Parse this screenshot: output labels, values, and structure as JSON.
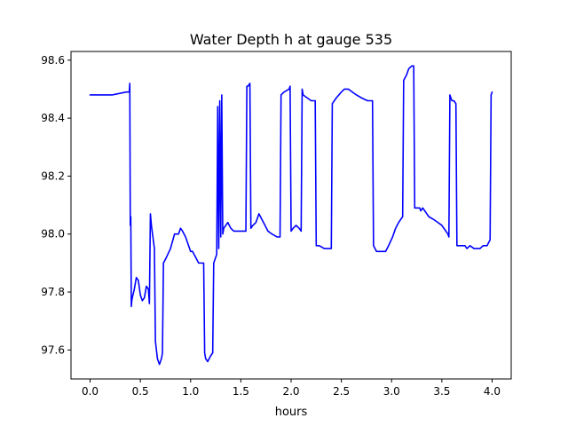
{
  "chart_data": {
    "type": "line",
    "title": "Water Depth h at gauge 535",
    "xlabel": "hours",
    "ylabel": "",
    "xlim": [
      -0.19,
      4.19
    ],
    "ylim": [
      97.5,
      98.63
    ],
    "xticks": [
      0.0,
      0.5,
      1.0,
      1.5,
      2.0,
      2.5,
      3.0,
      3.5,
      4.0
    ],
    "xtick_labels": [
      "0.0",
      "0.5",
      "1.0",
      "1.5",
      "2.0",
      "2.5",
      "3.0",
      "3.5",
      "4.0"
    ],
    "yticks": [
      97.6,
      97.8,
      98.0,
      98.2,
      98.4,
      98.6
    ],
    "ytick_labels": [
      "97.6",
      "97.8",
      "98.0",
      "98.2",
      "98.4",
      "98.6"
    ],
    "grid": false,
    "legend": "none",
    "series": [
      {
        "color": "#0000ff",
        "x": [
          0.0,
          0.22,
          0.36,
          0.38,
          0.39,
          0.395,
          0.4,
          0.405,
          0.41,
          0.415,
          0.42,
          0.44,
          0.46,
          0.48,
          0.5,
          0.52,
          0.54,
          0.56,
          0.58,
          0.59,
          0.6,
          0.61,
          0.64,
          0.65,
          0.67,
          0.69,
          0.71,
          0.72,
          0.73,
          0.76,
          0.8,
          0.84,
          0.88,
          0.9,
          0.92,
          0.95,
          0.98,
          1.0,
          1.02,
          1.05,
          1.08,
          1.13,
          1.14,
          1.15,
          1.17,
          1.2,
          1.22,
          1.23,
          1.26,
          1.27,
          1.28,
          1.29,
          1.3,
          1.31,
          1.32,
          1.33,
          1.35,
          1.37,
          1.4,
          1.43,
          1.46,
          1.47,
          1.55,
          1.56,
          1.57,
          1.59,
          1.6,
          1.62,
          1.65,
          1.68,
          1.71,
          1.74,
          1.77,
          1.81,
          1.86,
          1.89,
          1.9,
          1.93,
          1.98,
          1.99,
          2.0,
          2.02,
          2.05,
          2.08,
          2.1,
          2.11,
          2.12,
          2.16,
          2.2,
          2.24,
          2.25,
          2.28,
          2.33,
          2.36,
          2.4,
          2.41,
          2.45,
          2.5,
          2.53,
          2.57,
          2.61,
          2.65,
          2.7,
          2.76,
          2.81,
          2.82,
          2.85,
          2.88,
          2.91,
          2.94,
          2.97,
          3.01,
          3.04,
          3.07,
          3.11,
          3.12,
          3.15,
          3.17,
          3.2,
          3.22,
          3.23,
          3.28,
          3.29,
          3.31,
          3.33,
          3.37,
          3.42,
          3.46,
          3.5,
          3.56,
          3.57,
          3.58,
          3.6,
          3.62,
          3.64,
          3.65,
          3.66,
          3.7,
          3.72,
          3.73,
          3.75,
          3.78,
          3.82,
          3.85,
          3.88,
          3.91,
          3.95,
          3.98,
          3.99,
          4.0
        ],
        "y": [
          98.48,
          98.48,
          98.49,
          98.49,
          98.49,
          98.52,
          98.03,
          98.06,
          97.75,
          97.77,
          97.78,
          97.81,
          97.85,
          97.84,
          97.79,
          97.77,
          97.78,
          97.82,
          97.81,
          97.76,
          98.07,
          98.03,
          97.95,
          97.63,
          97.57,
          97.55,
          97.57,
          97.59,
          97.9,
          97.92,
          97.95,
          98.0,
          98.0,
          98.02,
          98.01,
          97.99,
          97.96,
          97.94,
          97.94,
          97.92,
          97.9,
          97.9,
          97.59,
          97.57,
          97.56,
          97.58,
          97.59,
          97.9,
          97.93,
          98.44,
          97.95,
          98.46,
          97.99,
          98.48,
          98.0,
          98.02,
          98.03,
          98.04,
          98.02,
          98.01,
          98.01,
          98.01,
          98.01,
          98.51,
          98.51,
          98.52,
          98.02,
          98.03,
          98.04,
          98.07,
          98.05,
          98.03,
          98.01,
          98.0,
          97.99,
          97.99,
          98.48,
          98.49,
          98.5,
          98.51,
          98.01,
          98.02,
          98.03,
          98.02,
          98.01,
          98.5,
          98.48,
          98.47,
          98.46,
          98.46,
          97.96,
          97.96,
          97.95,
          97.95,
          97.95,
          98.45,
          98.47,
          98.49,
          98.5,
          98.5,
          98.49,
          98.48,
          98.47,
          98.46,
          98.46,
          97.96,
          97.94,
          97.94,
          97.94,
          97.94,
          97.96,
          97.99,
          98.02,
          98.04,
          98.06,
          98.53,
          98.55,
          98.57,
          98.58,
          98.58,
          98.09,
          98.09,
          98.08,
          98.09,
          98.08,
          98.06,
          98.05,
          98.04,
          98.03,
          98.0,
          97.99,
          98.48,
          98.46,
          98.46,
          98.45,
          97.96,
          97.96,
          97.96,
          97.96,
          97.96,
          97.95,
          97.96,
          97.95,
          97.95,
          97.95,
          97.96,
          97.96,
          97.98,
          98.48,
          98.49
        ]
      }
    ]
  }
}
